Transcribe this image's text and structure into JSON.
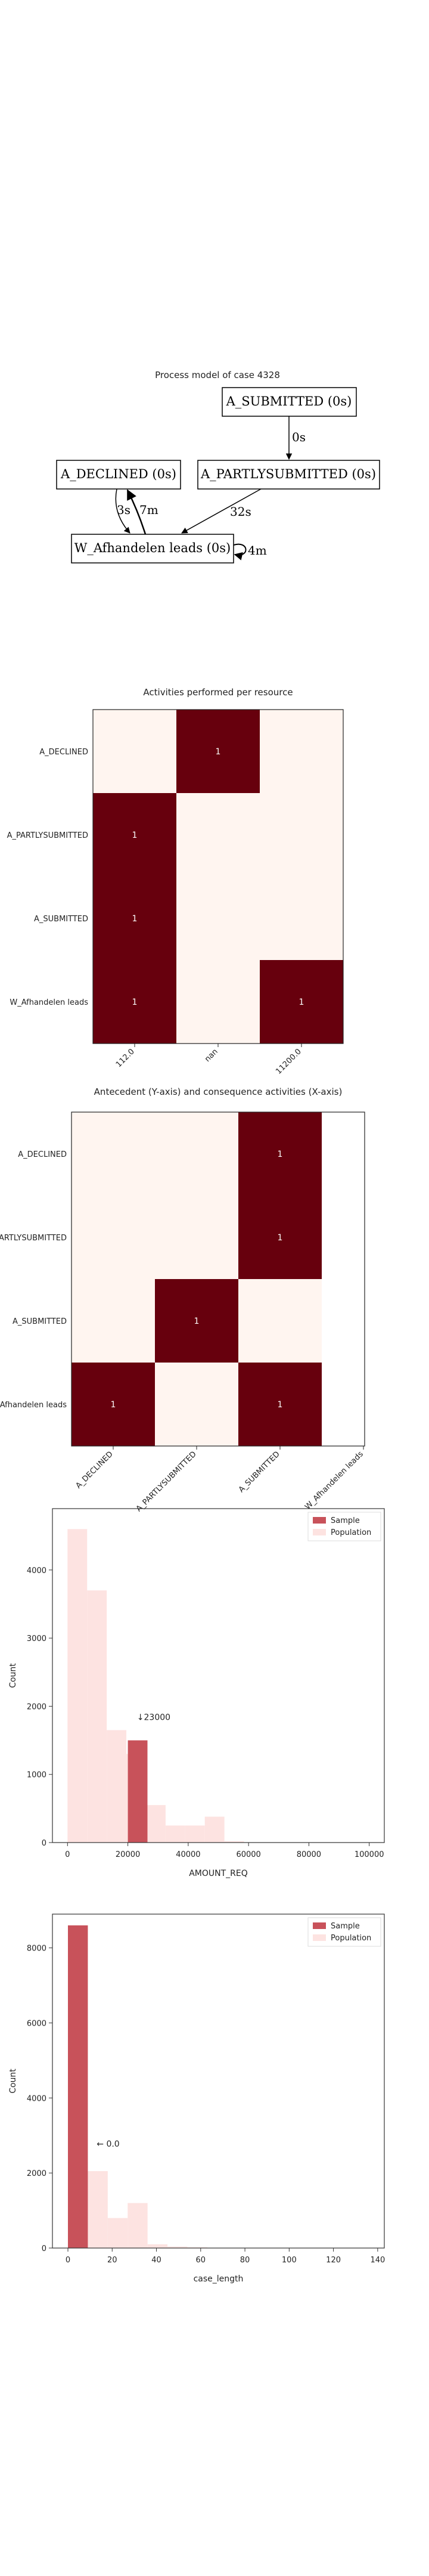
{
  "process_model": {
    "title": "Process model of case 4328",
    "nodes": {
      "submitted": "A_SUBMITTED (0s)",
      "partly": "A_PARTLYSUBMITTED (0s)",
      "declined": "A_DECLINED (0s)",
      "afhandelen": "W_Afhandelen leads (0s)"
    },
    "edges": {
      "submitted_partly": "0s",
      "partly_afhandelen": "32s",
      "declined_afhandelen": "3s",
      "afhandelen_declined": "7m",
      "afhandelen_self": "4m"
    }
  },
  "chart_data": [
    {
      "type": "heatmap",
      "title": "Activities performed per resource",
      "rows": [
        "A_DECLINED",
        "A_PARTLYSUBMITTED",
        "A_SUBMITTED",
        "W_Afhandelen leads"
      ],
      "columns": [
        "112.0",
        "nan",
        "11200.0"
      ],
      "values": [
        [
          0,
          1,
          0
        ],
        [
          1,
          0,
          0
        ],
        [
          1,
          0,
          0
        ],
        [
          1,
          0,
          1
        ]
      ],
      "colors": {
        "zero": "#fff5f0",
        "one": "#67000d",
        "label_on_dark": "#ffffff"
      }
    },
    {
      "type": "heatmap",
      "title": "Antecedent (Y-axis) and consequence activities (X-axis)",
      "rows": [
        "A_DECLINED",
        "A_PARTLYSUBMITTED",
        "A_SUBMITTED",
        "W_Afhandelen leads"
      ],
      "columns": [
        "A_DECLINED",
        "A_PARTLYSUBMITTED",
        "A_SUBMITTED",
        "W_Afhandelen leads"
      ],
      "values": [
        [
          0,
          0,
          1,
          null
        ],
        [
          0,
          0,
          1,
          null
        ],
        [
          0,
          1,
          0,
          null
        ],
        [
          1,
          0,
          1,
          null
        ]
      ],
      "colors": {
        "zero": "#fff5f0",
        "one": "#67000d",
        "label_on_dark": "#ffffff"
      }
    },
    {
      "type": "bar",
      "xlabel": "AMOUNT_REQ",
      "ylabel": "Count",
      "xlim": [
        -5000,
        105000
      ],
      "ylim": [
        0,
        4900
      ],
      "xticks": [
        "0",
        "20000",
        "40000",
        "60000",
        "80000",
        "100000"
      ],
      "xtick_values": [
        0,
        20000,
        40000,
        60000,
        80000,
        100000
      ],
      "yticks": [
        "0",
        "1000",
        "2000",
        "3000",
        "4000"
      ],
      "ytick_values": [
        0,
        1000,
        2000,
        3000,
        4000
      ],
      "series": [
        {
          "name": "Population",
          "color": "#fde3e1",
          "bins": [
            [
              0,
              6500,
              4600
            ],
            [
              6500,
              13000,
              3700
            ],
            [
              13000,
              19500,
              1650
            ],
            [
              19500,
              26000,
              1300
            ],
            [
              26000,
              32500,
              550
            ],
            [
              32500,
              39000,
              250
            ],
            [
              39000,
              45500,
              250
            ],
            [
              45500,
              52000,
              380
            ],
            [
              52000,
              58500,
              20
            ]
          ]
        },
        {
          "name": "Sample",
          "color": "#c8525a",
          "bins": [
            [
              20000,
              26500,
              1500
            ]
          ]
        }
      ],
      "annotation": {
        "text": "↓23000",
        "x": 23000,
        "y": 1800
      },
      "legend": "top-right"
    },
    {
      "type": "bar",
      "xlabel": "case_length",
      "ylabel": "Count",
      "xlim": [
        -7,
        143
      ],
      "ylim": [
        0,
        8900
      ],
      "xticks": [
        "0",
        "20",
        "40",
        "60",
        "80",
        "100",
        "120",
        "140"
      ],
      "xtick_values": [
        0,
        20,
        40,
        60,
        80,
        100,
        120,
        140
      ],
      "yticks": [
        "0",
        "2000",
        "4000",
        "6000",
        "8000"
      ],
      "ytick_values": [
        0,
        2000,
        4000,
        6000,
        8000
      ],
      "series": [
        {
          "name": "Population",
          "color": "#fde3e1",
          "bins": [
            [
              0,
              9,
              8600
            ],
            [
              9,
              18,
              2050
            ],
            [
              18,
              27,
              800
            ],
            [
              27,
              36,
              1200
            ],
            [
              36,
              45,
              100
            ],
            [
              45,
              54,
              40
            ],
            [
              54,
              63,
              20
            ]
          ]
        },
        {
          "name": "Sample",
          "color": "#c8525a",
          "bins": [
            [
              0,
              9,
              8600
            ]
          ]
        }
      ],
      "annotation": {
        "text": "← 0.0",
        "x": 13,
        "y": 2700
      },
      "legend": "top-right"
    }
  ]
}
